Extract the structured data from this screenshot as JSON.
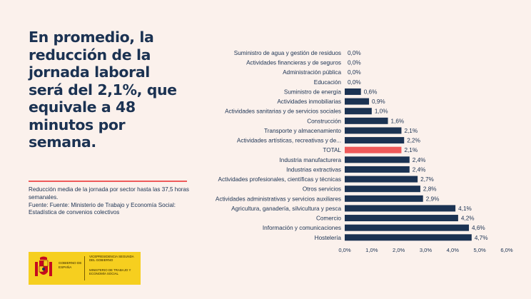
{
  "headline": "En promedio, la reducción de la jornada laboral será del 2,1%, que equivale a 48 minutos por semana.",
  "caption": {
    "line1": "Reducción media de la jornada por sector hasta las 37,5 horas semanales.",
    "line2": "Fuente: Fuente: Ministerio de Trabajo y Economía Social: Estadística de convenios colectivos"
  },
  "logo": {
    "government": "GOBIERNO DE ESPAÑA",
    "vicepresidency": "VICEPRESIDENCIA SEGUNDA DEL GOBIERNO",
    "ministry": "MINISTERIO DE TRABAJO Y ECONOMÍA SOCIAL",
    "coat_colors": [
      "#c60b1e",
      "#f6cf1f"
    ]
  },
  "colors": {
    "background": "#fbf1ec",
    "text": "#1b3252",
    "bar": "#1b3252",
    "highlight": "#ef5a5a"
  },
  "chart_data": {
    "type": "bar",
    "orientation": "horizontal",
    "categories": [
      "Suministro de agua y gestión de residuos",
      "Actividades financieras y de seguros",
      "Administración pública",
      "Educación",
      "Suministro de energía",
      "Actividades inmobiliarias",
      "Actividades sanitarias y de servicios sociales",
      "Construcción",
      "Transporte y almacenamiento",
      "Actividades artísticas, recreativas y de...",
      "TOTAL",
      "Industria manufacturera",
      "Industrias extractivas",
      "Actividades profesionales, científicas y técnicas",
      "Otros servicios",
      "Actividades administrativas y servicios auxiliares",
      "Agricultura, ganadería, silvicultura y pesca",
      "Comercio",
      "Información y comunicaciones",
      "Hostelería"
    ],
    "values": [
      0.0,
      0.0,
      0.0,
      0.0,
      0.6,
      0.9,
      1.0,
      1.6,
      2.1,
      2.2,
      2.1,
      2.4,
      2.4,
      2.7,
      2.8,
      2.9,
      4.1,
      4.2,
      4.6,
      4.7
    ],
    "value_labels": [
      "0,0%",
      "0,0%",
      "0,0%",
      "0,0%",
      "0,6%",
      "0,9%",
      "1,0%",
      "1,6%",
      "2,1%",
      "2,2%",
      "2,1%",
      "2,4%",
      "2,4%",
      "2,7%",
      "2,8%",
      "2,9%",
      "4,1%",
      "4,2%",
      "4,6%",
      "4,7%"
    ],
    "highlight_category": "TOTAL",
    "xlim": [
      0,
      6
    ],
    "xticks": [
      0,
      1,
      2,
      3,
      4,
      5,
      6
    ],
    "xtick_labels": [
      "0,0%",
      "1,0%",
      "2,0%",
      "3,0%",
      "4,0%",
      "5,0%",
      "6,0%"
    ],
    "grid": false,
    "legend": "none"
  }
}
